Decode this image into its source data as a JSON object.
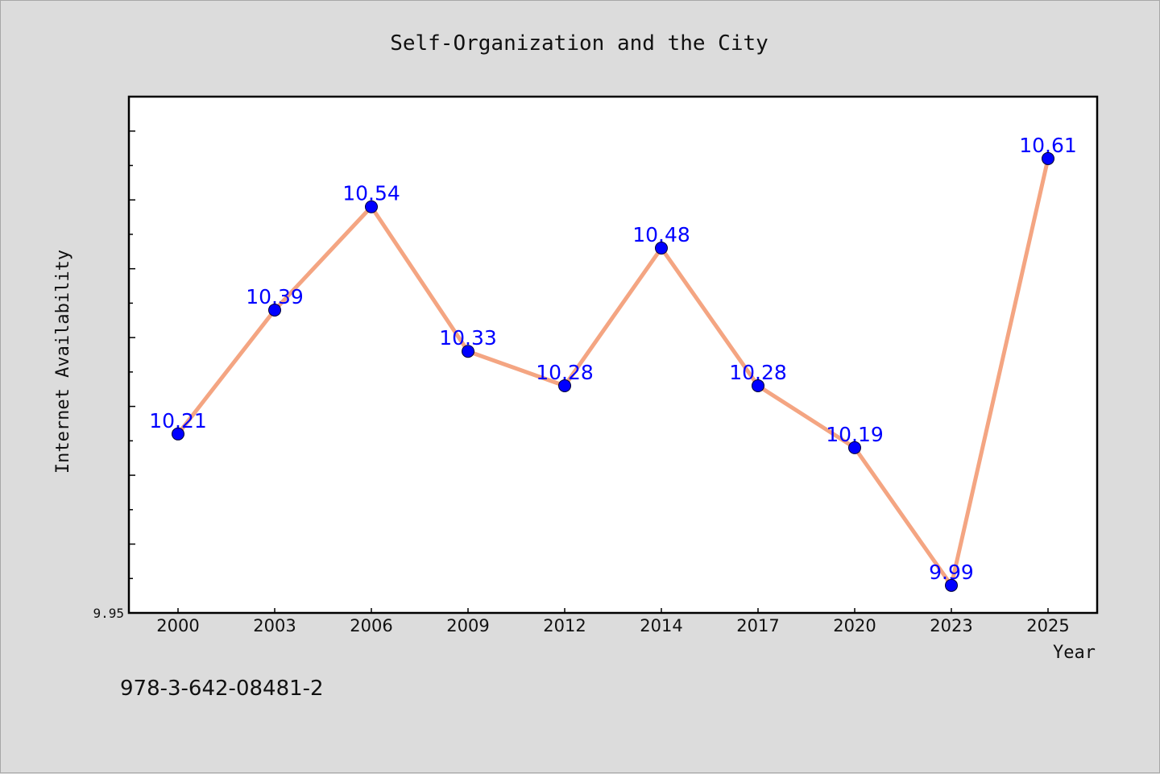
{
  "chart_data": {
    "type": "line",
    "title": "Self-Organization and the City",
    "xlabel": "Year",
    "ylabel": "Internet Availability",
    "categories": [
      "2000",
      "2003",
      "2006",
      "2009",
      "2012",
      "2014",
      "2017",
      "2020",
      "2023",
      "2025"
    ],
    "values": [
      10.21,
      10.39,
      10.54,
      10.33,
      10.28,
      10.48,
      10.28,
      10.19,
      9.99,
      10.61
    ],
    "data_labels": [
      "10.21",
      "10.39",
      "10.54",
      "10.33",
      "10.28",
      "10.48",
      "10.28",
      "10.19",
      "9.99",
      "10.61"
    ],
    "ylim": [
      9.95,
      10.7
    ],
    "y_tick_labels": [
      "9.95"
    ],
    "grid": false,
    "line_color": "#f4a582",
    "marker_color": "#0000ff",
    "label_color": "#0000ff"
  },
  "footer": {
    "isbn": "978-3-642-08481-2"
  }
}
